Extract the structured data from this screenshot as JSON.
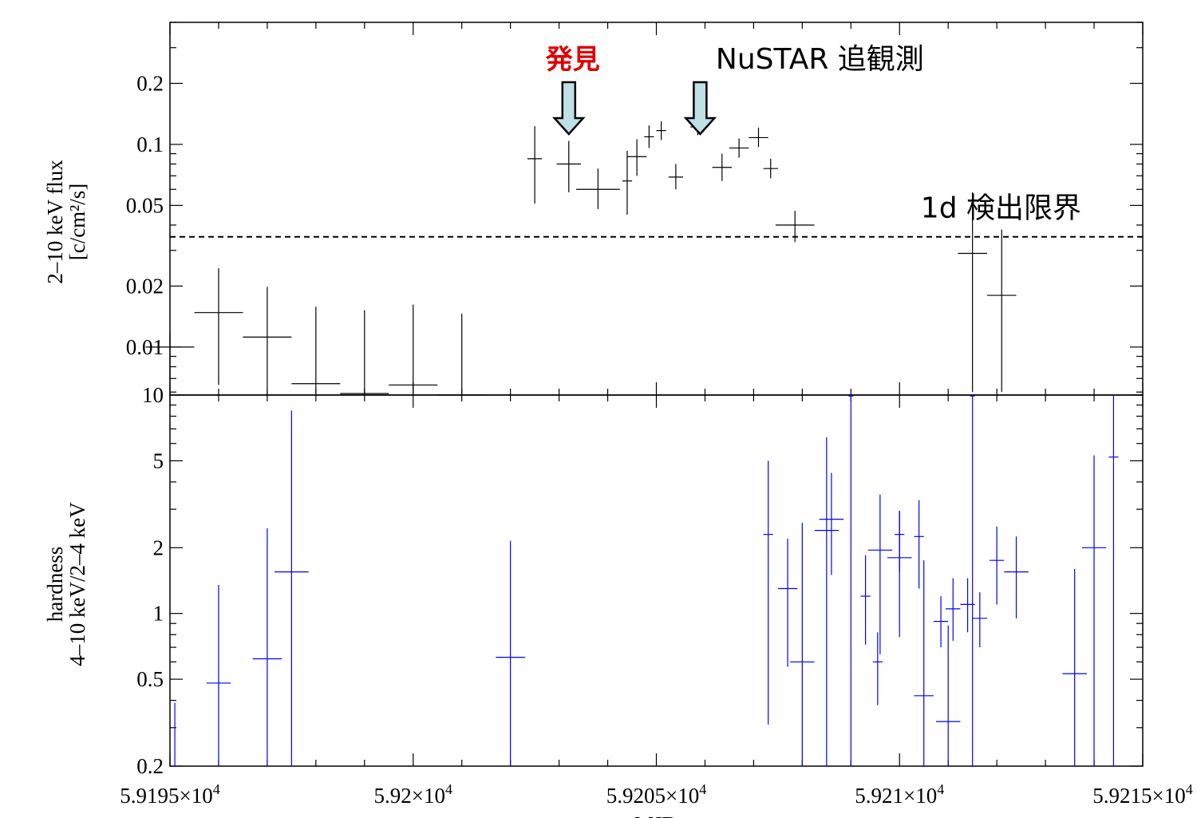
{
  "chart_data": [
    {
      "type": "scatter",
      "panel": "top",
      "ylabel": [
        "2–10 keV flux",
        "[c/cm²/s]"
      ],
      "yscale": "log",
      "ylim": [
        0.0058,
        0.4
      ],
      "yticks": [
        0.01,
        0.02,
        0.05,
        0.1,
        0.2
      ],
      "ytick_labels": [
        "0.01",
        "0.02",
        "0.05",
        "0.1",
        "0.2"
      ],
      "error_bar_color": "#000000",
      "threshold": {
        "value": 0.035,
        "label": "1d 検出限界"
      },
      "annotations": [
        {
          "text": "発見",
          "color": "#e00000",
          "x": 59203.2
        },
        {
          "text": "NuSTAR 追観測",
          "color": "#000000",
          "x": 59205.9
        }
      ],
      "series": [
        {
          "points": [
            {
              "x": 59195.0,
              "dx": 0.5,
              "y": 0.01,
              "ylo": 0.0058,
              "yhi": 0.0118
            },
            {
              "x": 59196.0,
              "dx": 0.5,
              "y": 0.0148,
              "ylo": 0.0065,
              "yhi": 0.0245
            },
            {
              "x": 59197.0,
              "dx": 0.5,
              "y": 0.0112,
              "ylo": 0.0058,
              "yhi": 0.0198
            },
            {
              "x": 59198.0,
              "dx": 0.5,
              "y": 0.0066,
              "ylo": 0.0058,
              "yhi": 0.0158
            },
            {
              "x": 59199.0,
              "dx": 0.5,
              "y": 0.0059,
              "ylo": 0.0058,
              "yhi": 0.0152
            },
            {
              "x": 59200.0,
              "dx": 0.5,
              "y": 0.0065,
              "ylo": 0.0058,
              "yhi": 0.0162
            },
            {
              "x": 59201.0,
              "dx": 0.5,
              "y": 0.0058,
              "ylo": 0.0058,
              "yhi": 0.0146
            },
            {
              "x": 59211.5,
              "dx": 0.3,
              "y": 0.029,
              "ylo": 0.006,
              "yhi": 0.058
            },
            {
              "x": 59212.1,
              "dx": 0.3,
              "y": 0.018,
              "ylo": 0.006,
              "yhi": 0.038
            },
            {
              "x": 59202.5,
              "dx": 0.15,
              "y": 0.085,
              "ylo": 0.051,
              "yhi": 0.123
            },
            {
              "x": 59203.2,
              "dx": 0.25,
              "y": 0.08,
              "ylo": 0.058,
              "yhi": 0.104
            },
            {
              "x": 59203.8,
              "dx": 0.45,
              "y": 0.06,
              "ylo": 0.048,
              "yhi": 0.076
            },
            {
              "x": 59204.4,
              "dx": 0.1,
              "y": 0.066,
              "ylo": 0.045,
              "yhi": 0.093
            },
            {
              "x": 59204.6,
              "dx": 0.2,
              "y": 0.087,
              "ylo": 0.07,
              "yhi": 0.106
            },
            {
              "x": 59204.85,
              "dx": 0.1,
              "y": 0.109,
              "ylo": 0.096,
              "yhi": 0.124
            },
            {
              "x": 59205.1,
              "dx": 0.1,
              "y": 0.117,
              "ylo": 0.105,
              "yhi": 0.13
            },
            {
              "x": 59205.4,
              "dx": 0.15,
              "y": 0.069,
              "ylo": 0.06,
              "yhi": 0.08
            },
            {
              "x": 59205.85,
              "dx": 0.15,
              "y": 0.122,
              "ylo": 0.111,
              "yhi": 0.135
            },
            {
              "x": 59206.35,
              "dx": 0.2,
              "y": 0.077,
              "ylo": 0.066,
              "yhi": 0.09
            },
            {
              "x": 59206.7,
              "dx": 0.2,
              "y": 0.096,
              "ylo": 0.086,
              "yhi": 0.107
            },
            {
              "x": 59207.1,
              "dx": 0.2,
              "y": 0.108,
              "ylo": 0.097,
              "yhi": 0.121
            },
            {
              "x": 59207.35,
              "dx": 0.15,
              "y": 0.076,
              "ylo": 0.068,
              "yhi": 0.085
            },
            {
              "x": 59207.85,
              "dx": 0.4,
              "y": 0.04,
              "ylo": 0.033,
              "yhi": 0.047
            }
          ]
        }
      ]
    },
    {
      "type": "scatter",
      "panel": "bottom",
      "xlabel": "MJD",
      "ylabel": [
        "hardness",
        "4–10 keV/2–4 keV"
      ],
      "yscale": "log",
      "ylim": [
        0.2,
        10
      ],
      "xlim": [
        59195,
        59215
      ],
      "yticks": [
        0.2,
        0.5,
        1,
        2,
        5,
        10
      ],
      "ytick_labels": [
        "0.2",
        "0.5",
        "1",
        "2",
        "5",
        "10"
      ],
      "xticks": [
        59195,
        59200,
        59205,
        59210,
        59215
      ],
      "xtick_labels": [
        {
          "mant": "5.9195×10",
          "exp": "4"
        },
        {
          "mant": "5.92×10",
          "exp": "4"
        },
        {
          "mant": "5.9205×10",
          "exp": "4"
        },
        {
          "mant": "5.921×10",
          "exp": "4"
        },
        {
          "mant": "5.9215×10",
          "exp": "4"
        }
      ],
      "error_bar_color": "#0000ff",
      "series": [
        {
          "points": [
            {
              "x": 59196.0,
              "dx": 0.25,
              "y": 0.48,
              "ylo": 0.2,
              "yhi": 1.35
            },
            {
              "x": 59197.0,
              "dx": 0.3,
              "y": 0.62,
              "ylo": 0.2,
              "yhi": 2.45
            },
            {
              "x": 59197.5,
              "dx": 0.35,
              "y": 1.55,
              "ylo": 0.2,
              "yhi": 8.5
            },
            {
              "x": 59202.0,
              "dx": 0.3,
              "y": 0.63,
              "ylo": 0.2,
              "yhi": 2.15
            },
            {
              "x": 59207.3,
              "dx": 0.1,
              "y": 2.3,
              "ylo": 0.31,
              "yhi": 5.0
            },
            {
              "x": 59207.7,
              "dx": 0.2,
              "y": 1.3,
              "ylo": 0.57,
              "yhi": 2.2
            },
            {
              "x": 59208.6,
              "dx": 0.25,
              "y": 2.7,
              "ylo": 1.5,
              "yhi": 4.4
            },
            {
              "x": 59209.0,
              "dx": 0.05,
              "y": 9.9,
              "ylo": 0.2,
              "yhi": 10
            },
            {
              "x": 59209.3,
              "dx": 0.1,
              "y": 1.2,
              "ylo": 0.72,
              "yhi": 1.85
            },
            {
              "x": 59209.55,
              "dx": 0.1,
              "y": 0.6,
              "ylo": 0.38,
              "yhi": 0.82
            },
            {
              "x": 59210.0,
              "dx": 0.1,
              "y": 2.3,
              "ylo": 1.55,
              "yhi": 2.95
            },
            {
              "x": 59210.4,
              "dx": 0.1,
              "y": 2.25,
              "ylo": 1.3,
              "yhi": 3.3
            },
            {
              "x": 59210.85,
              "dx": 0.15,
              "y": 0.92,
              "ylo": 0.7,
              "yhi": 1.2
            },
            {
              "x": 59211.1,
              "dx": 0.15,
              "y": 1.05,
              "ylo": 0.75,
              "yhi": 1.45
            },
            {
              "x": 59211.4,
              "dx": 0.15,
              "y": 1.1,
              "ylo": 0.82,
              "yhi": 1.45
            },
            {
              "x": 59211.65,
              "dx": 0.15,
              "y": 0.95,
              "ylo": 0.7,
              "yhi": 1.25
            },
            {
              "x": 59212.0,
              "dx": 0.15,
              "y": 1.75,
              "ylo": 1.1,
              "yhi": 2.5
            },
            {
              "x": 59212.4,
              "dx": 0.25,
              "y": 1.55,
              "ylo": 0.95,
              "yhi": 2.25
            },
            {
              "x": 59208.0,
              "dx": 0.25,
              "y": 0.6,
              "ylo": 0.2,
              "yhi": 2.6
            },
            {
              "x": 59208.5,
              "dx": 0.25,
              "y": 2.4,
              "ylo": 0.2,
              "yhi": 6.4
            },
            {
              "x": 59209.6,
              "dx": 0.25,
              "y": 1.95,
              "ylo": 0.65,
              "yhi": 3.5
            },
            {
              "x": 59210.0,
              "dx": 0.25,
              "y": 1.8,
              "ylo": 0.78,
              "yhi": 2.95
            },
            {
              "x": 59210.5,
              "dx": 0.2,
              "y": 0.42,
              "ylo": 0.2,
              "yhi": 1.75
            },
            {
              "x": 59211.0,
              "dx": 0.25,
              "y": 0.32,
              "ylo": 0.2,
              "yhi": 0.88
            },
            {
              "x": 59211.5,
              "dx": 0.05,
              "y": 9.9,
              "ylo": 0.2,
              "yhi": 10
            },
            {
              "x": 59213.6,
              "dx": 0.25,
              "y": 0.53,
              "ylo": 0.2,
              "yhi": 1.6
            },
            {
              "x": 59214.0,
              "dx": 0.25,
              "y": 2.0,
              "ylo": 0.2,
              "yhi": 5.3
            },
            {
              "x": 59214.4,
              "dx": 0.1,
              "y": 5.2,
              "ylo": 0.2,
              "yhi": 10
            },
            {
              "x": 59195.1,
              "dx": 0.05,
              "y": 0.2,
              "ylo": 0.2,
              "yhi": 0.39
            }
          ]
        }
      ]
    }
  ]
}
